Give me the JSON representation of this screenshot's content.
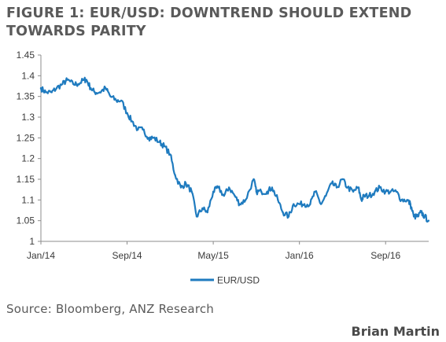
{
  "figure": {
    "title": "FIGURE 1: EUR/USD: DOWNTREND SHOULD EXTEND TOWARDS PARITY",
    "source": "Source: Bloomberg, ANZ Research",
    "author": "Brian Martin"
  },
  "chart_data": {
    "type": "line",
    "title": "",
    "xlabel": "",
    "ylabel": "",
    "x_ticks": [
      "Jan/14",
      "Sep/14",
      "May/15",
      "Jan/16",
      "Sep/16"
    ],
    "x_range": [
      "2014-01",
      "2016-12"
    ],
    "y_ticks": [
      "1",
      "1.05",
      "1.1",
      "1.15",
      "1.2",
      "1.25",
      "1.3",
      "1.35",
      "1.4",
      "1.45"
    ],
    "ylim": [
      1.0,
      1.45
    ],
    "grid": false,
    "legend_position": "bottom-center",
    "series": [
      {
        "name": "EUR/USD",
        "color": "#1f7bbf",
        "points": [
          [
            "2014-01-01",
            1.37
          ],
          [
            "2014-01-15",
            1.36
          ],
          [
            "2014-02-01",
            1.36
          ],
          [
            "2014-02-15",
            1.37
          ],
          [
            "2014-03-01",
            1.38
          ],
          [
            "2014-03-15",
            1.39
          ],
          [
            "2014-04-01",
            1.38
          ],
          [
            "2014-04-15",
            1.38
          ],
          [
            "2014-05-01",
            1.39
          ],
          [
            "2014-05-08",
            1.39
          ],
          [
            "2014-05-20",
            1.37
          ],
          [
            "2014-06-01",
            1.36
          ],
          [
            "2014-06-15",
            1.36
          ],
          [
            "2014-07-01",
            1.37
          ],
          [
            "2014-07-15",
            1.35
          ],
          [
            "2014-08-01",
            1.34
          ],
          [
            "2014-08-15",
            1.34
          ],
          [
            "2014-09-01",
            1.31
          ],
          [
            "2014-09-15",
            1.29
          ],
          [
            "2014-10-01",
            1.27
          ],
          [
            "2014-10-15",
            1.27
          ],
          [
            "2014-11-01",
            1.25
          ],
          [
            "2014-11-15",
            1.25
          ],
          [
            "2014-12-01",
            1.24
          ],
          [
            "2014-12-15",
            1.23
          ],
          [
            "2015-01-01",
            1.21
          ],
          [
            "2015-01-15",
            1.16
          ],
          [
            "2015-02-01",
            1.13
          ],
          [
            "2015-02-15",
            1.14
          ],
          [
            "2015-03-01",
            1.12
          ],
          [
            "2015-03-15",
            1.06
          ],
          [
            "2015-04-01",
            1.08
          ],
          [
            "2015-04-15",
            1.07
          ],
          [
            "2015-05-01",
            1.12
          ],
          [
            "2015-05-15",
            1.13
          ],
          [
            "2015-06-01",
            1.11
          ],
          [
            "2015-06-15",
            1.13
          ],
          [
            "2015-07-01",
            1.11
          ],
          [
            "2015-07-15",
            1.09
          ],
          [
            "2015-08-01",
            1.1
          ],
          [
            "2015-08-24",
            1.15
          ],
          [
            "2015-09-01",
            1.12
          ],
          [
            "2015-09-15",
            1.12
          ],
          [
            "2015-10-01",
            1.12
          ],
          [
            "2015-10-15",
            1.13
          ],
          [
            "2015-11-01",
            1.1
          ],
          [
            "2015-11-15",
            1.07
          ],
          [
            "2015-12-01",
            1.06
          ],
          [
            "2015-12-15",
            1.09
          ],
          [
            "2016-01-01",
            1.09
          ],
          [
            "2016-01-15",
            1.09
          ],
          [
            "2016-02-01",
            1.09
          ],
          [
            "2016-02-15",
            1.12
          ],
          [
            "2016-03-01",
            1.09
          ],
          [
            "2016-03-15",
            1.11
          ],
          [
            "2016-04-01",
            1.14
          ],
          [
            "2016-04-15",
            1.13
          ],
          [
            "2016-05-01",
            1.15
          ],
          [
            "2016-05-15",
            1.13
          ],
          [
            "2016-06-01",
            1.12
          ],
          [
            "2016-06-15",
            1.13
          ],
          [
            "2016-06-24",
            1.1
          ],
          [
            "2016-07-01",
            1.11
          ],
          [
            "2016-07-15",
            1.11
          ],
          [
            "2016-08-01",
            1.12
          ],
          [
            "2016-08-15",
            1.13
          ],
          [
            "2016-09-01",
            1.12
          ],
          [
            "2016-09-15",
            1.12
          ],
          [
            "2016-10-01",
            1.12
          ],
          [
            "2016-10-15",
            1.1
          ],
          [
            "2016-11-01",
            1.1
          ],
          [
            "2016-11-10",
            1.09
          ],
          [
            "2016-11-20",
            1.06
          ],
          [
            "2016-12-01",
            1.06
          ],
          [
            "2016-12-10",
            1.07
          ],
          [
            "2016-12-20",
            1.06
          ],
          [
            "2016-12-31",
            1.05
          ]
        ]
      }
    ]
  }
}
